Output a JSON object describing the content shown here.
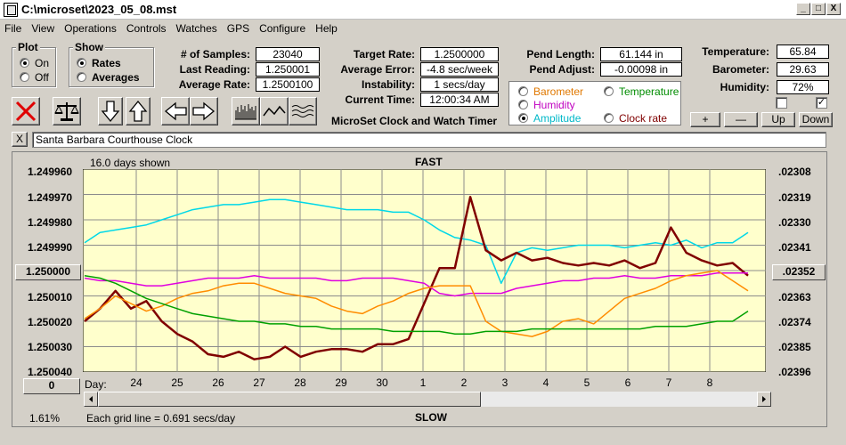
{
  "window": {
    "title": "C:\\microset\\2023_05_08.mst",
    "min_label": "_",
    "max_label": "□",
    "close_label": "X"
  },
  "menu": [
    "File",
    "View",
    "Operations",
    "Controls",
    "Watches",
    "GPS",
    "Configure",
    "Help"
  ],
  "plot_group": {
    "label": "Plot",
    "options": [
      "On",
      "Off"
    ],
    "selected": "On"
  },
  "show_group": {
    "label": "Show",
    "options": [
      "Rates",
      "Averages"
    ],
    "selected": "Rates"
  },
  "stats": {
    "samples_label": "# of Samples:",
    "samples": "23040",
    "last_reading_label": "Last Reading:",
    "last_reading": "1.250001",
    "average_rate_label": "Average Rate:",
    "average_rate": "1.2500100",
    "target_rate_label": "Target Rate:",
    "target_rate": "1.2500000",
    "average_error_label": "Average Error:",
    "average_error": "-4.8 sec/week",
    "instability_label": "Instability:",
    "instability": "1 secs/day",
    "current_time_label": "Current Time:",
    "current_time": "12:00:34 AM",
    "pend_length_label": "Pend Length:",
    "pend_length": "61.144 in",
    "pend_adjust_label": "Pend Adjust:",
    "pend_adjust": "-0.00098 in",
    "temperature_label": "Temperature:",
    "temperature": "65.84",
    "barometer_label": "Barometer:",
    "barometer": "29.63",
    "humidity_label": "Humidity:",
    "humidity": "72%"
  },
  "app_caption": "MicroSet Clock and Watch Timer",
  "plot_options": [
    {
      "label": "Barometer",
      "color": "#e07800",
      "selected": false
    },
    {
      "label": "Temperature",
      "color": "#008c00",
      "selected": false
    },
    {
      "label": "Humidity",
      "color": "#c000c0",
      "selected": false
    },
    {
      "label": "Clock rate",
      "color": "#800000",
      "selected": false
    },
    {
      "label": "Amplitude",
      "color": "#00b8c8",
      "selected": true
    }
  ],
  "zoom_buttons": {
    "plus": "+",
    "minus": "—",
    "up": "Up",
    "down": "Down"
  },
  "clock_name": "Santa Barbara Courthouse Clock",
  "close_x": "X",
  "chart_header": {
    "days_shown": "16.0 days shown",
    "fast": "FAST",
    "slow": "SLOW",
    "day": "Day:",
    "grid_note": "Each grid line = 0.691 secs/day",
    "percent": "1.61%"
  },
  "center_left_button": "1.250000",
  "center_right_button": ".02352",
  "zero_button": "0",
  "chart_data": {
    "type": "line",
    "x_ticks": [
      "24",
      "25",
      "26",
      "27",
      "28",
      "29",
      "30",
      "1",
      "2",
      "3",
      "4",
      "5",
      "6",
      "7",
      "8"
    ],
    "y_left_ticks": [
      "1.249960",
      "1.249970",
      "1.249980",
      "1.249990",
      "1.250000",
      "1.250010",
      "1.250020",
      "1.250030",
      "1.250040"
    ],
    "y_right_ticks": [
      ".02308",
      ".02319",
      ".02330",
      ".02341",
      ".02352",
      ".02363",
      ".02374",
      ".02385",
      ".02396"
    ],
    "ylim_left": [
      1.25004,
      1.24996
    ],
    "series": [
      {
        "name": "Amplitude",
        "color": "#00d8e8",
        "values": [
          1.249989,
          1.249985,
          1.249984,
          1.249983,
          1.249982,
          1.24998,
          1.249978,
          1.249976,
          1.249975,
          1.249974,
          1.249974,
          1.249973,
          1.249972,
          1.249972,
          1.249973,
          1.249974,
          1.249975,
          1.249976,
          1.249976,
          1.249976,
          1.249977,
          1.249977,
          1.24998,
          1.249984,
          1.249987,
          1.249988,
          1.24999,
          1.250005,
          1.249993,
          1.249991,
          1.249992,
          1.249991,
          1.24999,
          1.24999,
          1.24999,
          1.249991,
          1.24999,
          1.249989,
          1.24999,
          1.249988,
          1.249991,
          1.249989,
          1.249989,
          1.249985
        ]
      },
      {
        "name": "Clock rate",
        "color": "#800000",
        "values": [
          1.25002,
          1.250015,
          1.250008,
          1.250015,
          1.250012,
          1.25002,
          1.250025,
          1.250028,
          1.250033,
          1.250034,
          1.250032,
          1.250035,
          1.250034,
          1.25003,
          1.250034,
          1.250032,
          1.250031,
          1.250031,
          1.250032,
          1.250029,
          1.250029,
          1.250027,
          1.250013,
          1.249999,
          1.249999,
          1.249971,
          1.249992,
          1.249996,
          1.249993,
          1.249996,
          1.249995,
          1.249997,
          1.249998,
          1.249997,
          1.249998,
          1.249996,
          1.249999,
          1.249997,
          1.249983,
          1.249993,
          1.249996,
          1.249998,
          1.249997,
          1.250002
        ]
      },
      {
        "name": "Humidity",
        "color": "#e000e0",
        "values": [
          1.250003,
          1.250004,
          1.250004,
          1.250005,
          1.250006,
          1.250006,
          1.250005,
          1.250004,
          1.250003,
          1.250003,
          1.250003,
          1.250002,
          1.250003,
          1.250003,
          1.250003,
          1.250003,
          1.250004,
          1.250004,
          1.250003,
          1.250003,
          1.250003,
          1.250004,
          1.250005,
          1.250009,
          1.25001,
          1.250009,
          1.250009,
          1.250009,
          1.250007,
          1.250006,
          1.250005,
          1.250004,
          1.250004,
          1.250003,
          1.250003,
          1.250002,
          1.250003,
          1.250003,
          1.250002,
          1.250002,
          1.250002,
          1.250001,
          1.250001,
          1.250001
        ]
      },
      {
        "name": "Barometer",
        "color": "#ff8c00",
        "values": [
          1.250019,
          1.250015,
          1.25001,
          1.250013,
          1.250016,
          1.250014,
          1.250011,
          1.250009,
          1.250008,
          1.250006,
          1.250005,
          1.250005,
          1.250007,
          1.250009,
          1.25001,
          1.250011,
          1.250014,
          1.250016,
          1.250017,
          1.250014,
          1.250012,
          1.250009,
          1.250007,
          1.250006,
          1.250006,
          1.250006,
          1.25002,
          1.250024,
          1.250025,
          1.250026,
          1.250024,
          1.25002,
          1.250019,
          1.250021,
          1.250016,
          1.250011,
          1.250009,
          1.250007,
          1.250004,
          1.250002,
          1.250001,
          1.25,
          1.250004,
          1.250008
        ]
      },
      {
        "name": "Temperature",
        "color": "#00a000",
        "values": [
          1.250002,
          1.250003,
          1.250005,
          1.250008,
          1.250011,
          1.250013,
          1.250015,
          1.250017,
          1.250018,
          1.250019,
          1.25002,
          1.25002,
          1.250021,
          1.250021,
          1.250022,
          1.250022,
          1.250023,
          1.250023,
          1.250023,
          1.250023,
          1.250024,
          1.250024,
          1.250024,
          1.250024,
          1.250025,
          1.250025,
          1.250024,
          1.250024,
          1.250024,
          1.250023,
          1.250023,
          1.250023,
          1.250023,
          1.250023,
          1.250023,
          1.250023,
          1.250023,
          1.250022,
          1.250022,
          1.250022,
          1.250021,
          1.25002,
          1.25002,
          1.250016
        ]
      }
    ]
  }
}
